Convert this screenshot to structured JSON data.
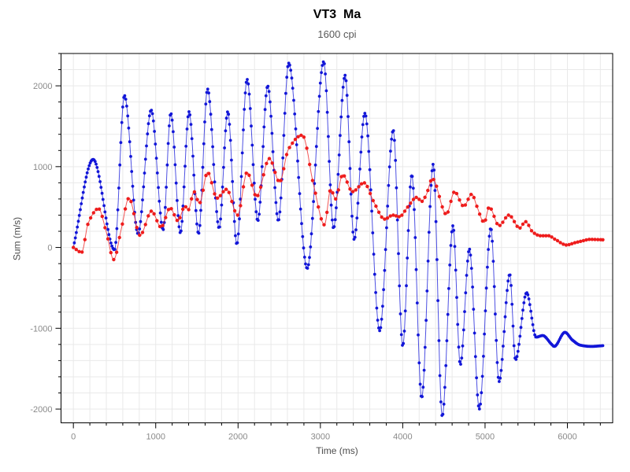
{
  "title": "VT3  Ma",
  "subtitle": "1600 cpi",
  "chart_data": {
    "type": "line",
    "title": "VT3  Ma",
    "subtitle": "1600 cpi",
    "xlabel": "Time (ms)",
    "ylabel": "Sum (m/s)",
    "xlim": [
      -150,
      6550
    ],
    "ylim": [
      -2170,
      2400
    ],
    "x_major_ticks": [
      0,
      1000,
      2000,
      3000,
      4000,
      5000,
      6000
    ],
    "y_major_ticks": [
      -2000,
      -1000,
      0,
      1000,
      2000
    ],
    "minor_tick_step": 200,
    "grid": "minor",
    "grid_color": "#e9e9e9",
    "frame_color": "#000000",
    "legend": "none",
    "series": [
      {
        "name": "blue-sum",
        "color": "#1216d8",
        "marker": "circle",
        "marker_radius": 1.9,
        "marker_interval_ms": 12,
        "keypoints": [
          [
            0,
            0
          ],
          [
            240,
            1090
          ],
          [
            500,
            -30
          ],
          [
            620,
            1880
          ],
          [
            785,
            170
          ],
          [
            945,
            1700
          ],
          [
            1090,
            220
          ],
          [
            1183,
            1660
          ],
          [
            1300,
            180
          ],
          [
            1405,
            1680
          ],
          [
            1520,
            170
          ],
          [
            1630,
            1960
          ],
          [
            1770,
            240
          ],
          [
            1875,
            1680
          ],
          [
            1985,
            40
          ],
          [
            2110,
            2080
          ],
          [
            2240,
            330
          ],
          [
            2360,
            2000
          ],
          [
            2490,
            330
          ],
          [
            2615,
            2280
          ],
          [
            2840,
            -260
          ],
          [
            3040,
            2300
          ],
          [
            3160,
            240
          ],
          [
            3300,
            2130
          ],
          [
            3410,
            100
          ],
          [
            3540,
            1660
          ],
          [
            3720,
            -1030
          ],
          [
            3885,
            1450
          ],
          [
            4000,
            -1220
          ],
          [
            4110,
            900
          ],
          [
            4230,
            -1860
          ],
          [
            4370,
            1030
          ],
          [
            4480,
            -2090
          ],
          [
            4610,
            270
          ],
          [
            4700,
            -1450
          ],
          [
            4810,
            -20
          ],
          [
            4930,
            -2000
          ],
          [
            5070,
            240
          ],
          [
            5170,
            -1660
          ],
          [
            5300,
            -330
          ],
          [
            5370,
            -1390
          ],
          [
            5505,
            -560
          ],
          [
            5620,
            -1110
          ],
          [
            5700,
            -1090
          ],
          [
            5810,
            -1200
          ],
          [
            5840,
            -1225
          ],
          [
            5970,
            -1050
          ],
          [
            6060,
            -1145
          ],
          [
            6160,
            -1210
          ],
          [
            6290,
            -1225
          ],
          [
            6430,
            -1215
          ]
        ]
      },
      {
        "name": "red-sum",
        "color": "#ee1c1c",
        "marker": "circle",
        "marker_radius": 2.2,
        "marker_interval_ms": 35,
        "keypoints": [
          [
            0,
            0
          ],
          [
            100,
            -60
          ],
          [
            180,
            300
          ],
          [
            305,
            480
          ],
          [
            400,
            190
          ],
          [
            490,
            -150
          ],
          [
            580,
            220
          ],
          [
            675,
            610
          ],
          [
            810,
            150
          ],
          [
            950,
            450
          ],
          [
            1065,
            250
          ],
          [
            1175,
            490
          ],
          [
            1270,
            330
          ],
          [
            1355,
            510
          ],
          [
            1395,
            465
          ],
          [
            1465,
            690
          ],
          [
            1530,
            545
          ],
          [
            1630,
            930
          ],
          [
            1745,
            610
          ],
          [
            1860,
            720
          ],
          [
            1995,
            400
          ],
          [
            2110,
            930
          ],
          [
            2225,
            630
          ],
          [
            2380,
            1100
          ],
          [
            2505,
            810
          ],
          [
            2610,
            1210
          ],
          [
            2780,
            1390
          ],
          [
            2920,
            760
          ],
          [
            3050,
            280
          ],
          [
            3125,
            720
          ],
          [
            3185,
            600
          ],
          [
            3270,
            900
          ],
          [
            3390,
            690
          ],
          [
            3530,
            800
          ],
          [
            3650,
            560
          ],
          [
            3780,
            350
          ],
          [
            3880,
            400
          ],
          [
            3960,
            380
          ],
          [
            4060,
            500
          ],
          [
            4170,
            620
          ],
          [
            4230,
            570
          ],
          [
            4285,
            650
          ],
          [
            4360,
            850
          ],
          [
            4530,
            410
          ],
          [
            4630,
            690
          ],
          [
            4740,
            510
          ],
          [
            4840,
            660
          ],
          [
            4900,
            510
          ],
          [
            4990,
            310
          ],
          [
            5050,
            500
          ],
          [
            5170,
            270
          ],
          [
            5290,
            400
          ],
          [
            5420,
            240
          ],
          [
            5490,
            320
          ],
          [
            5580,
            190
          ],
          [
            5670,
            145
          ],
          [
            5770,
            145
          ],
          [
            5860,
            95
          ],
          [
            5990,
            30
          ],
          [
            6080,
            55
          ],
          [
            6180,
            80
          ],
          [
            6270,
            100
          ],
          [
            6430,
            95
          ]
        ]
      }
    ]
  }
}
